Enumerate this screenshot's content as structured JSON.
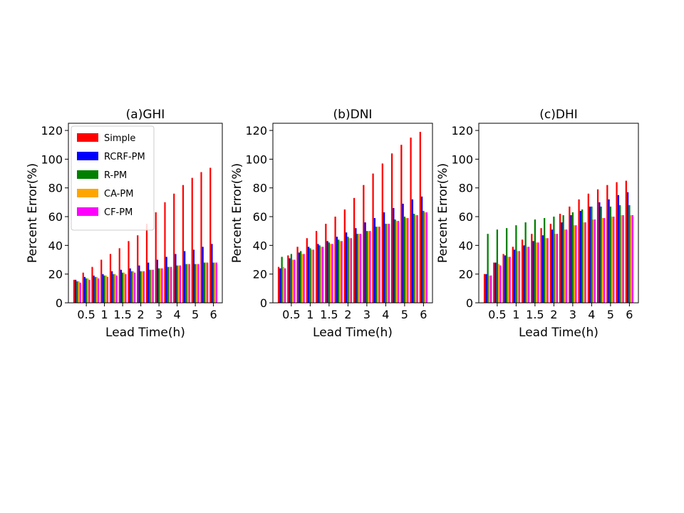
{
  "chart_data": [
    {
      "type": "bar",
      "title": "(a)GHI",
      "xlabel": "Lead Time(h)",
      "ylabel": "Percent Error(%)",
      "ylim": [
        0,
        125
      ],
      "yticks": [
        0,
        20,
        40,
        60,
        80,
        100,
        120
      ],
      "categories": [
        "0.25",
        "0.5",
        "0.75",
        "1",
        "1.25",
        "1.5",
        "1.75",
        "2",
        "2.5",
        "3",
        "3.5",
        "4",
        "4.5",
        "5",
        "5.5",
        "6"
      ],
      "xtick_labels": [
        "0.5",
        "1",
        "1.5",
        "2",
        "3",
        "4",
        "5",
        "6"
      ],
      "xtick_at": [
        "0.5",
        "1",
        "1.5",
        "2",
        "3",
        "4",
        "5",
        "6"
      ],
      "grid": false,
      "legend": "top-left",
      "series": [
        {
          "name": "Simple",
          "color": "#ff0000",
          "values": [
            16,
            21,
            25,
            30,
            34,
            38,
            43,
            47,
            55,
            63,
            70,
            76,
            82,
            87,
            91,
            94
          ]
        },
        {
          "name": "RCRF-PM",
          "color": "#0000ff",
          "values": [
            16,
            18,
            19,
            20,
            22,
            23,
            24,
            26,
            28,
            30,
            32,
            34,
            36,
            37,
            39,
            41
          ]
        },
        {
          "name": "R-PM",
          "color": "#008000",
          "values": [
            15,
            17,
            18,
            19,
            20,
            21,
            22,
            22,
            23,
            24,
            25,
            26,
            27,
            27,
            28,
            28
          ]
        },
        {
          "name": "CA-PM",
          "color": "#ffa500",
          "values": [
            15,
            17,
            18,
            19,
            20,
            21,
            22,
            22,
            23,
            24,
            25,
            26,
            27,
            27,
            28,
            28
          ]
        },
        {
          "name": "CF-PM",
          "color": "#ff00ff",
          "values": [
            14,
            16,
            17,
            18,
            19,
            20,
            21,
            22,
            23,
            24,
            25,
            26,
            27,
            27,
            28,
            28
          ]
        }
      ]
    },
    {
      "type": "bar",
      "title": "(b)DNI",
      "xlabel": "Lead Time(h)",
      "ylabel": "Percent Error(%)",
      "ylim": [
        0,
        125
      ],
      "yticks": [
        0,
        20,
        40,
        60,
        80,
        100,
        120
      ],
      "categories": [
        "0.25",
        "0.5",
        "0.75",
        "1",
        "1.25",
        "1.5",
        "1.75",
        "2",
        "2.5",
        "3",
        "3.5",
        "4",
        "4.5",
        "5",
        "5.5",
        "6"
      ],
      "xtick_labels": [
        "0.5",
        "1",
        "1.5",
        "2",
        "3",
        "4",
        "5",
        "6"
      ],
      "xtick_at": [
        "0.5",
        "1",
        "1.5",
        "2",
        "3",
        "4",
        "5",
        "6"
      ],
      "grid": false,
      "series": [
        {
          "name": "Simple",
          "color": "#ff0000",
          "values": [
            25,
            33,
            39,
            45,
            50,
            55,
            60,
            65,
            73,
            82,
            90,
            97,
            104,
            110,
            115,
            119
          ]
        },
        {
          "name": "RCRF-PM",
          "color": "#0000ff",
          "values": [
            24,
            31,
            35,
            39,
            41,
            43,
            46,
            49,
            52,
            56,
            59,
            63,
            66,
            69,
            72,
            74
          ]
        },
        {
          "name": "R-PM",
          "color": "#008000",
          "values": [
            32,
            34,
            36,
            38,
            40,
            42,
            44,
            46,
            48,
            50,
            53,
            55,
            58,
            60,
            62,
            64
          ]
        },
        {
          "name": "CA-PM",
          "color": "#ffa500",
          "values": [
            25,
            30,
            34,
            37,
            39,
            41,
            43,
            45,
            48,
            50,
            53,
            55,
            57,
            59,
            61,
            63
          ]
        },
        {
          "name": "CF-PM",
          "color": "#ff00ff",
          "values": [
            24,
            30,
            34,
            37,
            39,
            41,
            43,
            45,
            48,
            50,
            53,
            55,
            57,
            59,
            61,
            63
          ]
        }
      ]
    },
    {
      "type": "bar",
      "title": "(c)DHI",
      "xlabel": "Lead Time(h)",
      "ylabel": "Percent Error(%)",
      "ylim": [
        0,
        125
      ],
      "yticks": [
        0,
        20,
        40,
        60,
        80,
        100,
        120
      ],
      "categories": [
        "0.25",
        "0.5",
        "0.75",
        "1",
        "1.25",
        "1.5",
        "1.75",
        "2",
        "2.5",
        "3",
        "3.5",
        "4",
        "4.5",
        "5",
        "5.5",
        "6"
      ],
      "xtick_labels": [
        "0.5",
        "1",
        "1.5",
        "2",
        "3",
        "4",
        "5",
        "6"
      ],
      "xtick_at": [
        "0.5",
        "1",
        "1.5",
        "2",
        "3",
        "4",
        "5",
        "6"
      ],
      "grid": false,
      "series": [
        {
          "name": "Simple",
          "color": "#ff0000",
          "values": [
            20,
            28,
            34,
            39,
            44,
            48,
            52,
            55,
            62,
            67,
            72,
            76,
            79,
            82,
            84,
            85
          ]
        },
        {
          "name": "RCRF-PM",
          "color": "#0000ff",
          "values": [
            20,
            28,
            33,
            37,
            40,
            43,
            47,
            51,
            56,
            61,
            64,
            67,
            70,
            72,
            75,
            77
          ]
        },
        {
          "name": "R-PM",
          "color": "#008000",
          "values": [
            48,
            51,
            52,
            54,
            56,
            58,
            59,
            60,
            61,
            63,
            65,
            67,
            67,
            67,
            68,
            68
          ]
        },
        {
          "name": "CA-PM",
          "color": "#ffa500",
          "values": [
            19,
            27,
            32,
            36,
            39,
            42,
            45,
            48,
            51,
            54,
            56,
            58,
            59,
            60,
            61,
            61
          ]
        },
        {
          "name": "CF-PM",
          "color": "#ff00ff",
          "values": [
            19,
            26,
            32,
            36,
            39,
            42,
            45,
            48,
            51,
            54,
            56,
            58,
            59,
            60,
            61,
            61
          ]
        }
      ]
    }
  ]
}
